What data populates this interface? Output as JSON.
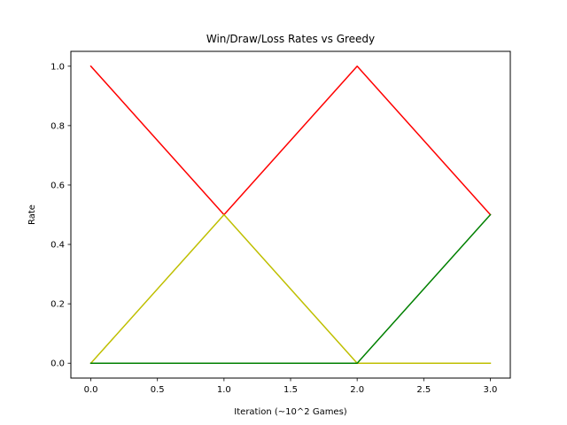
{
  "chart_data": {
    "type": "line",
    "title": "Win/Draw/Loss Rates vs Greedy",
    "xlabel": "Iteration (~10^2 Games)",
    "ylabel": "Rate",
    "xlim": [
      -0.15,
      3.15
    ],
    "ylim": [
      -0.05,
      1.05
    ],
    "x_ticks": [
      0.0,
      0.5,
      1.0,
      1.5,
      2.0,
      2.5,
      3.0
    ],
    "x_tick_labels": [
      "0.0",
      "0.5",
      "1.0",
      "1.5",
      "2.0",
      "2.5",
      "3.0"
    ],
    "y_ticks": [
      0.0,
      0.2,
      0.4,
      0.6,
      0.8,
      1.0
    ],
    "y_tick_labels": [
      "0.0",
      "0.2",
      "0.4",
      "0.6",
      "0.8",
      "1.0"
    ],
    "grid": false,
    "legend": "none",
    "x": [
      0,
      1,
      2,
      3
    ],
    "series": [
      {
        "color": "#ff0000",
        "values": [
          1.0,
          0.5,
          1.0,
          0.5
        ]
      },
      {
        "color": "#bfbf00",
        "values": [
          0.0,
          0.5,
          0.0,
          0.0
        ]
      },
      {
        "color": "#008000",
        "values": [
          0.0,
          0.0,
          0.0,
          0.5
        ]
      }
    ]
  }
}
